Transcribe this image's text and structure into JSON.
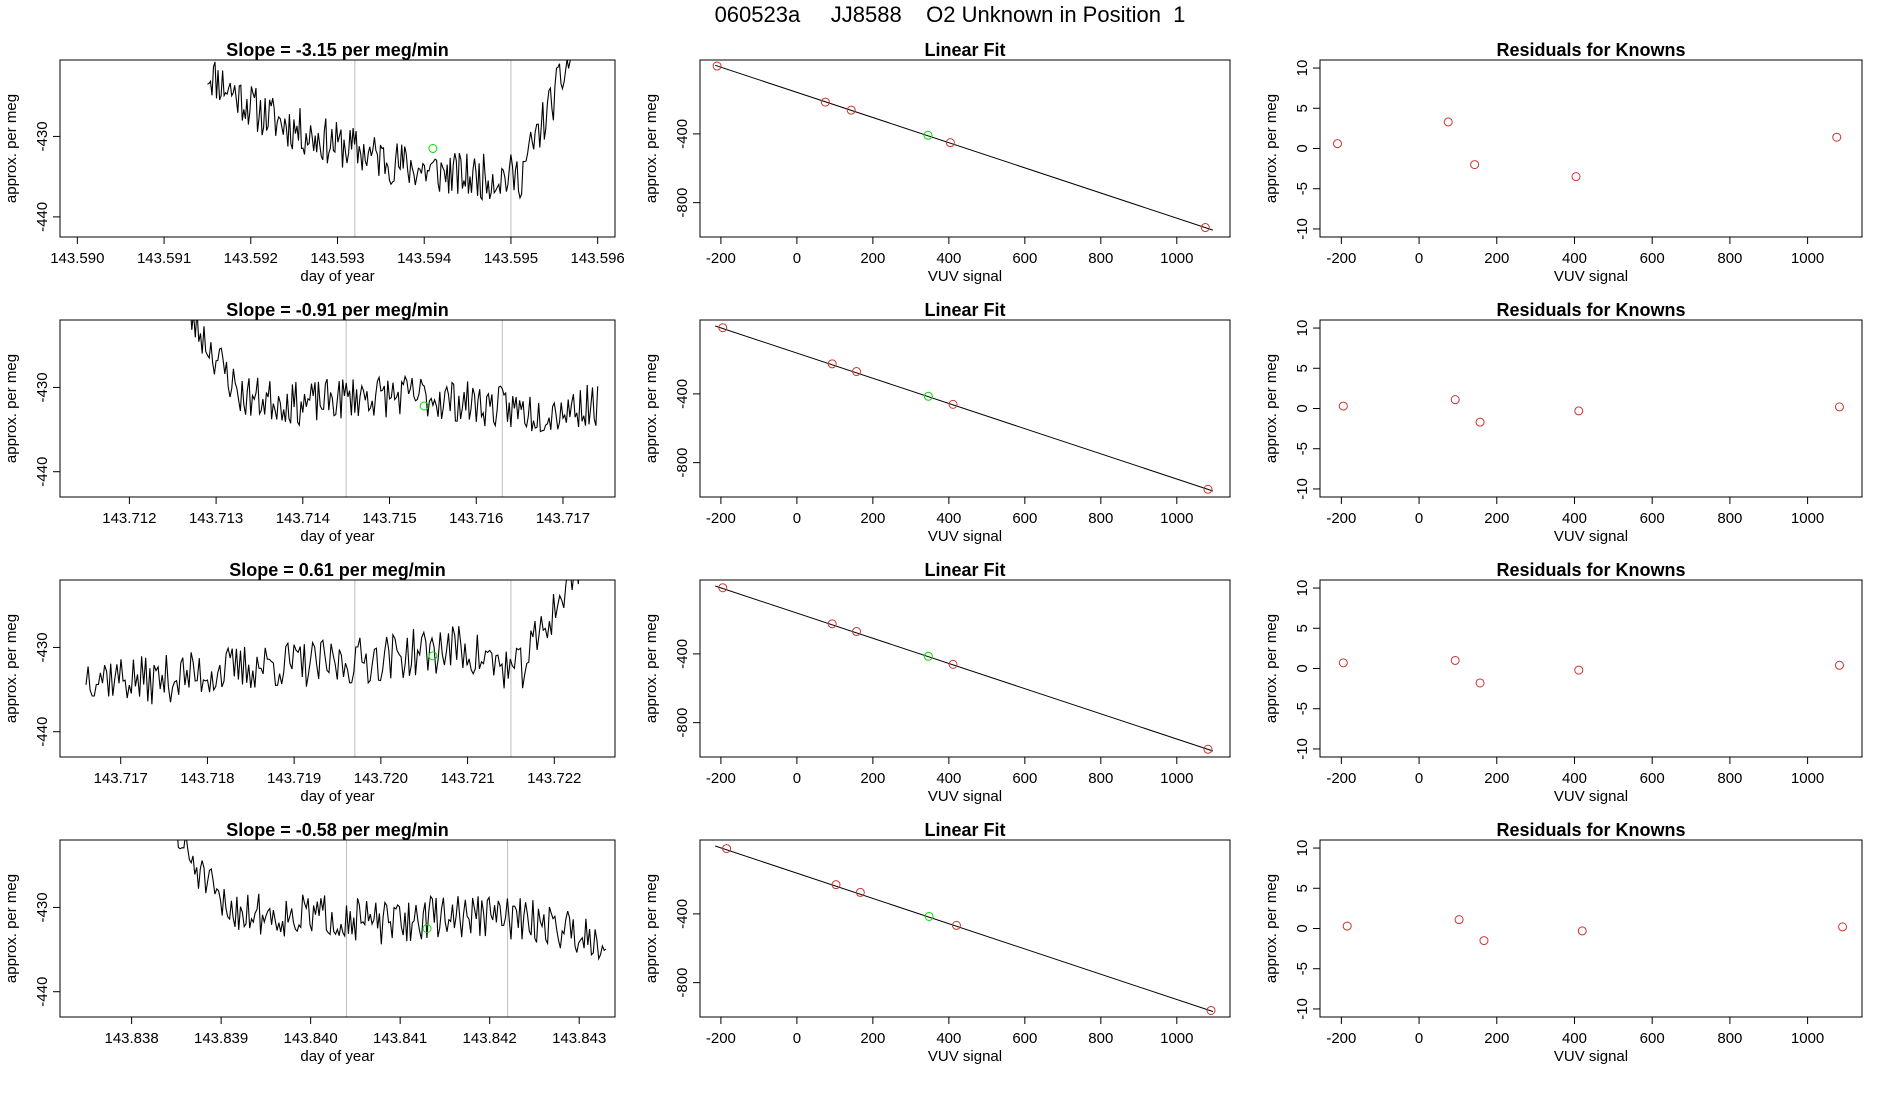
{
  "page_title": "060523a     JJ8588    O2 Unknown in Position  1",
  "chart_data": [
    {
      "type": "line",
      "title": "Slope =  -3.15  per meg/min",
      "xlabel": "day of year",
      "ylabel": "approx. per meg",
      "xlim": [
        143.5898,
        143.5962
      ],
      "ylim": [
        -442.5,
        -420.5
      ],
      "xticks": [
        "143.590",
        "143.591",
        "143.592",
        "143.593",
        "143.594",
        "143.595",
        "143.596"
      ],
      "xtick_values": [
        143.59,
        143.591,
        143.592,
        143.593,
        143.594,
        143.595,
        143.596
      ],
      "yticks": [
        "-430",
        "-440"
      ],
      "ytick_values": [
        -430,
        -440
      ],
      "vlines": [
        143.5932,
        143.595
      ],
      "series": {
        "x_start": 143.5915,
        "x_end": 143.5957,
        "levels": [
          -422,
          -427,
          -430,
          -432,
          -434,
          -435,
          -435,
          -420
        ],
        "seed": 11,
        "noise": 1.8
      },
      "highlight_point": {
        "x": 143.5941,
        "y": -431.5
      }
    },
    {
      "type": "scatter",
      "title": "Linear Fit",
      "xlabel": "VUV signal",
      "ylabel": "approx. per meg",
      "xlim": [
        -255,
        1140
      ],
      "ylim": [
        -1000,
        30
      ],
      "xticks": [
        "-200",
        "0",
        "200",
        "400",
        "600",
        "800",
        "1000"
      ],
      "xtick_values": [
        -200,
        0,
        200,
        400,
        600,
        800,
        1000
      ],
      "yticks": [
        "-400",
        "-800"
      ],
      "ytick_values": [
        -400,
        -800
      ],
      "fit_line": {
        "x": [
          -215,
          1095
        ],
        "y": [
          -1,
          -960
        ]
      },
      "knowns": {
        "x": [
          -210,
          75,
          143,
          404,
          1075
        ],
        "y": [
          -5,
          -215,
          -262,
          -451,
          -945
        ]
      },
      "unknown": {
        "x": 345,
        "y": -408
      }
    },
    {
      "type": "scatter",
      "title": "Residuals for Knowns",
      "xlabel": "VUV signal",
      "ylabel": "approx. per meg",
      "xlim": [
        -255,
        1140
      ],
      "ylim": [
        -11,
        11
      ],
      "xticks": [
        "-200",
        "0",
        "200",
        "400",
        "600",
        "800",
        "1000"
      ],
      "xtick_values": [
        -200,
        0,
        200,
        400,
        600,
        800,
        1000
      ],
      "yticks": [
        "-10",
        "-5",
        "0",
        "5",
        "10"
      ],
      "ytick_values": [
        -10,
        -5,
        0,
        5,
        10
      ],
      "residuals": {
        "x": [
          -210,
          75,
          143,
          404,
          1075
        ],
        "y": [
          0.6,
          3.3,
          -2.0,
          -3.5,
          1.4
        ]
      }
    },
    {
      "type": "line",
      "title": "Slope =  -0.91  per meg/min",
      "xlabel": "day of year",
      "ylabel": "approx. per meg",
      "xlim": [
        143.7112,
        143.7176
      ],
      "ylim": [
        -443,
        -422
      ],
      "xticks": [
        "143.712",
        "143.713",
        "143.714",
        "143.715",
        "143.716",
        "143.717"
      ],
      "xtick_values": [
        143.712,
        143.713,
        143.714,
        143.715,
        143.716,
        143.717
      ],
      "yticks": [
        "-430",
        "-440"
      ],
      "ytick_values": [
        -430,
        -440
      ],
      "vlines": [
        143.7145,
        143.7163
      ],
      "series": {
        "x_start": 143.7126,
        "x_end": 143.7174,
        "levels": [
          -420,
          -431,
          -432,
          -431,
          -431,
          -432,
          -433,
          -432
        ],
        "seed": 23,
        "noise": 1.6
      },
      "highlight_point": {
        "x": 143.7154,
        "y": -432.2
      }
    },
    {
      "type": "scatter",
      "title": "Linear Fit",
      "xlabel": "VUV signal",
      "ylabel": "approx. per meg",
      "xlim": [
        -255,
        1140
      ],
      "ylim": [
        -1000,
        30
      ],
      "xticks": [
        "-200",
        "0",
        "200",
        "400",
        "600",
        "800",
        "1000"
      ],
      "xtick_values": [
        -200,
        0,
        200,
        400,
        600,
        800,
        1000
      ],
      "yticks": [
        "-400",
        "-800"
      ],
      "ytick_values": [
        -400,
        -800
      ],
      "fit_line": {
        "x": [
          -215,
          1095
        ],
        "y": [
          -5,
          -965
        ]
      },
      "knowns": {
        "x": [
          -195,
          93,
          157,
          411,
          1082
        ],
        "y": [
          -15,
          -225,
          -270,
          -461,
          -955
        ]
      },
      "unknown": {
        "x": 346,
        "y": -414
      }
    },
    {
      "type": "scatter",
      "title": "Residuals for Knowns",
      "xlabel": "VUV signal",
      "ylabel": "approx. per meg",
      "xlim": [
        -255,
        1140
      ],
      "ylim": [
        -11,
        11
      ],
      "xticks": [
        "-200",
        "0",
        "200",
        "400",
        "600",
        "800",
        "1000"
      ],
      "xtick_values": [
        -200,
        0,
        200,
        400,
        600,
        800,
        1000
      ],
      "yticks": [
        "-10",
        "-5",
        "0",
        "5",
        "10"
      ],
      "ytick_values": [
        -10,
        -5,
        0,
        5,
        10
      ],
      "residuals": {
        "x": [
          -195,
          93,
          157,
          411,
          1082
        ],
        "y": [
          0.3,
          1.1,
          -1.7,
          -0.3,
          0.2
        ]
      }
    },
    {
      "type": "line",
      "title": "Slope =  0.61  per meg/min",
      "xlabel": "day of year",
      "ylabel": "approx. per meg",
      "xlim": [
        143.7163,
        143.7227
      ],
      "ylim": [
        -443,
        -422
      ],
      "xticks": [
        "143.717",
        "143.718",
        "143.719",
        "143.720",
        "143.721",
        "143.722"
      ],
      "xtick_values": [
        143.717,
        143.718,
        143.719,
        143.72,
        143.721,
        143.722
      ],
      "yticks": [
        "-430",
        "-440"
      ],
      "ytick_values": [
        -430,
        -440
      ],
      "vlines": [
        143.7197,
        143.7215
      ],
      "series": {
        "x_start": 143.7166,
        "x_end": 143.7223,
        "levels": [
          -433,
          -434,
          -433,
          -432,
          -432,
          -431,
          -430,
          -433,
          -420
        ],
        "seed": 37,
        "noise": 1.8
      },
      "highlight_point": {
        "x": 143.7206,
        "y": -431
      }
    },
    {
      "type": "scatter",
      "title": "Linear Fit",
      "xlabel": "VUV signal",
      "ylabel": "approx. per meg",
      "xlim": [
        -255,
        1140
      ],
      "ylim": [
        -1000,
        30
      ],
      "xticks": [
        "-200",
        "0",
        "200",
        "400",
        "600",
        "800",
        "1000"
      ],
      "xtick_values": [
        -200,
        0,
        200,
        400,
        600,
        800,
        1000
      ],
      "yticks": [
        "-400",
        "-800"
      ],
      "ytick_values": [
        -400,
        -800
      ],
      "fit_line": {
        "x": [
          -215,
          1095
        ],
        "y": [
          -5,
          -965
        ]
      },
      "knowns": {
        "x": [
          -195,
          93,
          157,
          411,
          1082
        ],
        "y": [
          -15,
          -225,
          -270,
          -461,
          -955
        ]
      },
      "unknown": {
        "x": 346,
        "y": -414
      }
    },
    {
      "type": "scatter",
      "title": "Residuals for Knowns",
      "xlabel": "VUV signal",
      "ylabel": "approx. per meg",
      "xlim": [
        -255,
        1140
      ],
      "ylim": [
        -11,
        11
      ],
      "xticks": [
        "-200",
        "0",
        "200",
        "400",
        "600",
        "800",
        "1000"
      ],
      "xtick_values": [
        -200,
        0,
        200,
        400,
        600,
        800,
        1000
      ],
      "yticks": [
        "-10",
        "-5",
        "0",
        "5",
        "10"
      ],
      "ytick_values": [
        -10,
        -5,
        0,
        5,
        10
      ],
      "residuals": {
        "x": [
          -195,
          93,
          157,
          411,
          1082
        ],
        "y": [
          0.7,
          1.0,
          -1.8,
          -0.2,
          0.4
        ]
      }
    },
    {
      "type": "line",
      "title": "Slope =  -0.58  per meg/min",
      "xlabel": "day of year",
      "ylabel": "approx. per meg",
      "xlim": [
        143.8372,
        143.8434
      ],
      "ylim": [
        -443,
        -422
      ],
      "xticks": [
        "143.838",
        "143.839",
        "143.840",
        "143.841",
        "143.842",
        "143.843"
      ],
      "xtick_values": [
        143.838,
        143.839,
        143.84,
        143.841,
        143.842,
        143.843
      ],
      "yticks": [
        "-430",
        "-440"
      ],
      "ytick_values": [
        -430,
        -440
      ],
      "vlines": [
        143.8404,
        143.8422
      ],
      "series": {
        "x_start": 143.8384,
        "x_end": 143.8433,
        "levels": [
          -420,
          -430,
          -431,
          -431,
          -432,
          -431,
          -431,
          -432,
          -434
        ],
        "seed": 51,
        "noise": 1.6
      },
      "highlight_point": {
        "x": 143.8413,
        "y": -432.5
      }
    },
    {
      "type": "scatter",
      "title": "Linear Fit",
      "xlabel": "VUV signal",
      "ylabel": "approx. per meg",
      "xlim": [
        -255,
        1140
      ],
      "ylim": [
        -1000,
        30
      ],
      "xticks": [
        "-200",
        "0",
        "200",
        "400",
        "600",
        "800",
        "1000"
      ],
      "xtick_values": [
        -200,
        0,
        200,
        400,
        600,
        800,
        1000
      ],
      "yticks": [
        "-400",
        "-800"
      ],
      "ytick_values": [
        -400,
        -800
      ],
      "fit_line": {
        "x": [
          -215,
          1095
        ],
        "y": [
          -5,
          -968
        ]
      },
      "knowns": {
        "x": [
          -185,
          103,
          167,
          420,
          1090
        ],
        "y": [
          -20,
          -230,
          -275,
          -467,
          -962
        ]
      },
      "unknown": {
        "x": 348,
        "y": -415
      }
    },
    {
      "type": "scatter",
      "title": "Residuals for Knowns",
      "xlabel": "VUV signal",
      "ylabel": "approx. per meg",
      "xlim": [
        -255,
        1140
      ],
      "ylim": [
        -11,
        11
      ],
      "xticks": [
        "-200",
        "0",
        "200",
        "400",
        "600",
        "800",
        "1000"
      ],
      "xtick_values": [
        -200,
        0,
        200,
        400,
        600,
        800,
        1000
      ],
      "yticks": [
        "-10",
        "-5",
        "0",
        "5",
        "10"
      ],
      "ytick_values": [
        -10,
        -5,
        0,
        5,
        10
      ],
      "residuals": {
        "x": [
          -185,
          103,
          167,
          420,
          1090
        ],
        "y": [
          0.3,
          1.1,
          -1.5,
          -0.3,
          0.2
        ]
      }
    }
  ],
  "colors": {
    "line": "#000000",
    "known": "#cd3333",
    "unknown": "#00dd00",
    "vline": "#bebebe",
    "fit": "#000000"
  }
}
